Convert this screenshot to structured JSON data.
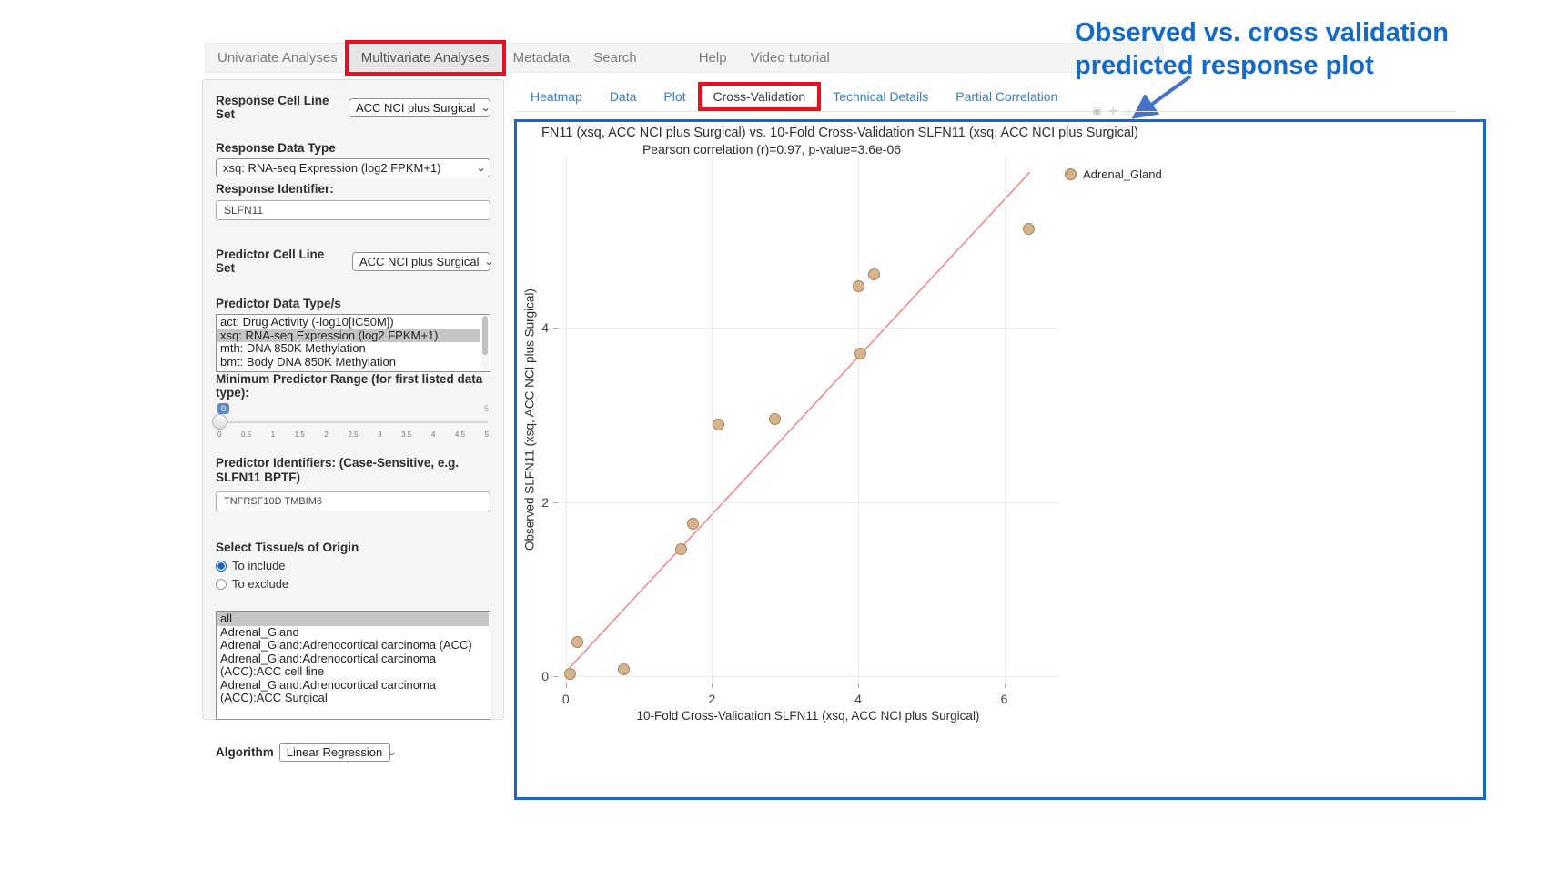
{
  "annotation": {
    "line1": "Observed vs. cross validation",
    "line2": "predicted response plot",
    "color": "#1569c7"
  },
  "navbar": {
    "items": [
      {
        "label": "Univariate Analyses",
        "active": false,
        "boxed": false
      },
      {
        "label": "Multivariate Analyses",
        "active": true,
        "boxed": true
      },
      {
        "label": "Metadata",
        "active": false,
        "boxed": false
      },
      {
        "label": "Search",
        "active": false,
        "boxed": false
      },
      {
        "label": "Help",
        "active": false,
        "boxed": false
      },
      {
        "label": "Video tutorial",
        "active": false,
        "boxed": false
      }
    ]
  },
  "sidebar": {
    "response_cell_line_set": {
      "label": "Response Cell Line Set",
      "value": "ACC NCI plus Surgical"
    },
    "response_data_type": {
      "label": "Response Data Type",
      "value": "xsq: RNA-seq Expression (log2 FPKM+1)"
    },
    "response_identifier": {
      "label": "Response Identifier:",
      "value": "SLFN11"
    },
    "predictor_cell_line_set": {
      "label": "Predictor Cell Line Set",
      "value": "ACC NCI plus Surgical"
    },
    "predictor_data_types": {
      "label": "Predictor Data Type/s",
      "options": [
        {
          "label": "act: Drug Activity (-log10[IC50M])",
          "selected": false
        },
        {
          "label": "xsq: RNA-seq Expression (log2 FPKM+1)",
          "selected": true
        },
        {
          "label": "mth: DNA 850K Methylation",
          "selected": false
        },
        {
          "label": "bmt: Body DNA 850K Methylation",
          "selected": false
        }
      ]
    },
    "min_predictor_range": {
      "label": "Minimum Predictor Range (for first listed data type):",
      "value": "0",
      "max_label": "5",
      "ticks": [
        "0",
        "0.5",
        "1",
        "1.5",
        "2",
        "2.5",
        "3",
        "3.5",
        "4",
        "4.5",
        "5"
      ]
    },
    "predictor_identifiers": {
      "label": "Predictor Identifiers: (Case-Sensitive, e.g. SLFN11 BPTF)",
      "value": "TNFRSF10D TMBIM6"
    },
    "tissue_origin": {
      "label": "Select Tissue/s of Origin",
      "radio_include": {
        "label": "To include",
        "checked": true
      },
      "radio_exclude": {
        "label": "To exclude",
        "checked": false
      },
      "options": [
        {
          "label": "all",
          "selected": true
        },
        {
          "label": "Adrenal_Gland",
          "selected": false
        },
        {
          "label": "Adrenal_Gland:Adrenocortical carcinoma (ACC)",
          "selected": false
        },
        {
          "label": "Adrenal_Gland:Adrenocortical carcinoma (ACC):ACC cell line",
          "selected": false
        },
        {
          "label": "Adrenal_Gland:Adrenocortical carcinoma (ACC):ACC Surgical",
          "selected": false
        }
      ]
    },
    "algorithm": {
      "label": "Algorithm",
      "value": "Linear Regression"
    }
  },
  "tabs": {
    "items": [
      {
        "label": "Heatmap",
        "active": false,
        "boxed": false
      },
      {
        "label": "Data",
        "active": false,
        "boxed": false
      },
      {
        "label": "Plot",
        "active": false,
        "boxed": false
      },
      {
        "label": "Cross-Validation",
        "active": true,
        "boxed": true
      },
      {
        "label": "Technical Details",
        "active": false,
        "boxed": false
      },
      {
        "label": "Partial Correlation",
        "active": false,
        "boxed": false
      }
    ]
  },
  "chart_data": {
    "type": "scatter",
    "title_visible": "FN11 (xsq, ACC NCI plus Surgical) vs. 10-Fold Cross-Validation SLFN11 (xsq, ACC NCI plus Surgical)",
    "subtitle": "Pearson correlation (r)=0.97, p-value=3.6e-06",
    "stats": {
      "pearson_r": "0.97",
      "p_value": "3.6e-06"
    },
    "xlabel": "10-Fold Cross-Validation SLFN11 (xsq, ACC NCI plus Surgical)",
    "ylabel": "Observed SLFN11 (xsq, ACC NCI plus Surgical)",
    "xticks": [
      0,
      2,
      4,
      6
    ],
    "yticks": [
      0,
      2,
      4
    ],
    "xlim": [
      -0.11,
      6.74
    ],
    "ylim": [
      -0.08,
      5.97
    ],
    "grid": true,
    "legend_position": "top-right",
    "series": [
      {
        "name": "Adrenal_Gland",
        "marker_color": "#d6b185",
        "marker_border": "#9e7e52",
        "points": [
          [
            0.06,
            0.02
          ],
          [
            0.17,
            0.39
          ],
          [
            0.8,
            0.08
          ],
          [
            1.59,
            1.45
          ],
          [
            1.74,
            1.75
          ],
          [
            2.09,
            2.88
          ],
          [
            2.87,
            2.95
          ],
          [
            4.01,
            4.47
          ],
          [
            4.04,
            3.7
          ],
          [
            4.22,
            4.6
          ],
          [
            6.34,
            5.13
          ]
        ]
      }
    ],
    "regression_line": {
      "x1": 0.05,
      "y1": 0.1,
      "x2": 6.35,
      "y2": 5.78,
      "color": "#f58b8b"
    }
  },
  "modebar_icons": [
    "camera-icon",
    "zoom-icon",
    "home-icon"
  ]
}
